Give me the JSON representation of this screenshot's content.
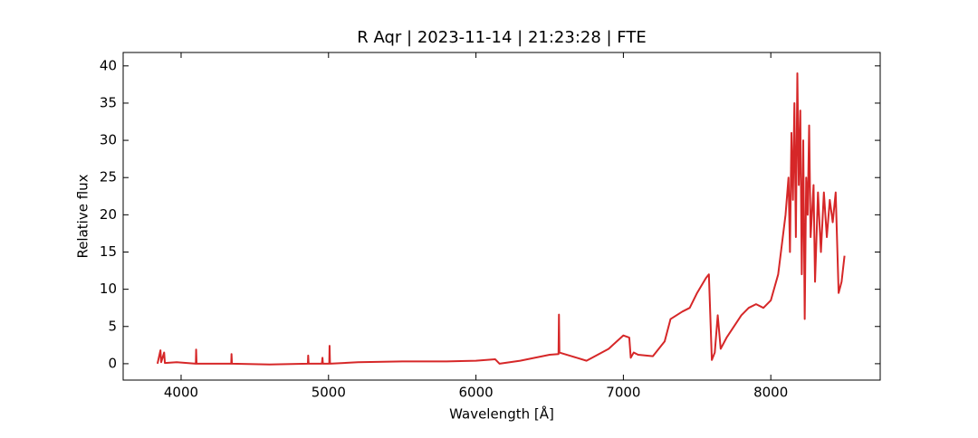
{
  "chart_data": {
    "type": "line",
    "title": "R Aqr | 2023-11-14 | 21:23:28 | FTE",
    "x_label": "Wavelength [Å]",
    "y_label": "Relative flux",
    "xlim": [
      3607,
      8742
    ],
    "ylim": [
      -2.2,
      41.8
    ],
    "xticks": [
      4000,
      5000,
      6000,
      7000,
      8000
    ],
    "yticks": [
      0,
      5,
      10,
      15,
      20,
      25,
      30,
      35,
      40
    ],
    "x": [
      3840,
      3860,
      3865,
      3885,
      3890,
      3970,
      4100,
      4102,
      4105,
      4340,
      4342,
      4345,
      4600,
      4860,
      4862,
      4865,
      4955,
      4959,
      4962,
      5005,
      5007,
      5010,
      5200,
      5500,
      5800,
      6000,
      6130,
      6160,
      6300,
      6500,
      6560,
      6563,
      6566,
      6650,
      6750,
      6900,
      7000,
      7040,
      7050,
      7070,
      7100,
      7200,
      7280,
      7320,
      7400,
      7450,
      7500,
      7560,
      7580,
      7600,
      7620,
      7640,
      7660,
      7700,
      7800,
      7850,
      7900,
      7950,
      8000,
      8050,
      8100,
      8120,
      8130,
      8140,
      8150,
      8160,
      8170,
      8180,
      8190,
      8200,
      8210,
      8220,
      8230,
      8240,
      8250,
      8260,
      8270,
      8290,
      8300,
      8320,
      8340,
      8360,
      8380,
      8400,
      8420,
      8440,
      8460,
      8480,
      8500
    ],
    "series": [
      {
        "name": "R Aqr",
        "color": "#d62728",
        "values": [
          0,
          1.8,
          0.2,
          1.5,
          0.1,
          0.2,
          0,
          1.9,
          0,
          0,
          1.3,
          0,
          -0.1,
          0,
          1.1,
          0,
          0,
          0.8,
          0,
          0,
          2.4,
          0,
          0.2,
          0.3,
          0.3,
          0.4,
          0.6,
          0,
          0.4,
          1.2,
          1.3,
          6.6,
          1.5,
          1,
          0.4,
          2,
          3.8,
          3.5,
          0.8,
          1.5,
          1.2,
          1.0,
          3,
          6,
          7,
          7.5,
          9.5,
          11.5,
          12,
          0.5,
          1.5,
          6.5,
          2,
          3.5,
          6.5,
          7.5,
          8,
          7.5,
          8.5,
          12,
          20,
          25,
          15,
          31,
          22,
          35,
          17,
          39,
          24,
          34,
          12,
          30,
          6,
          25,
          20,
          32,
          17,
          24,
          11,
          23,
          15,
          23,
          17,
          22,
          19,
          23,
          9.5,
          11,
          14.5
        ]
      }
    ]
  }
}
